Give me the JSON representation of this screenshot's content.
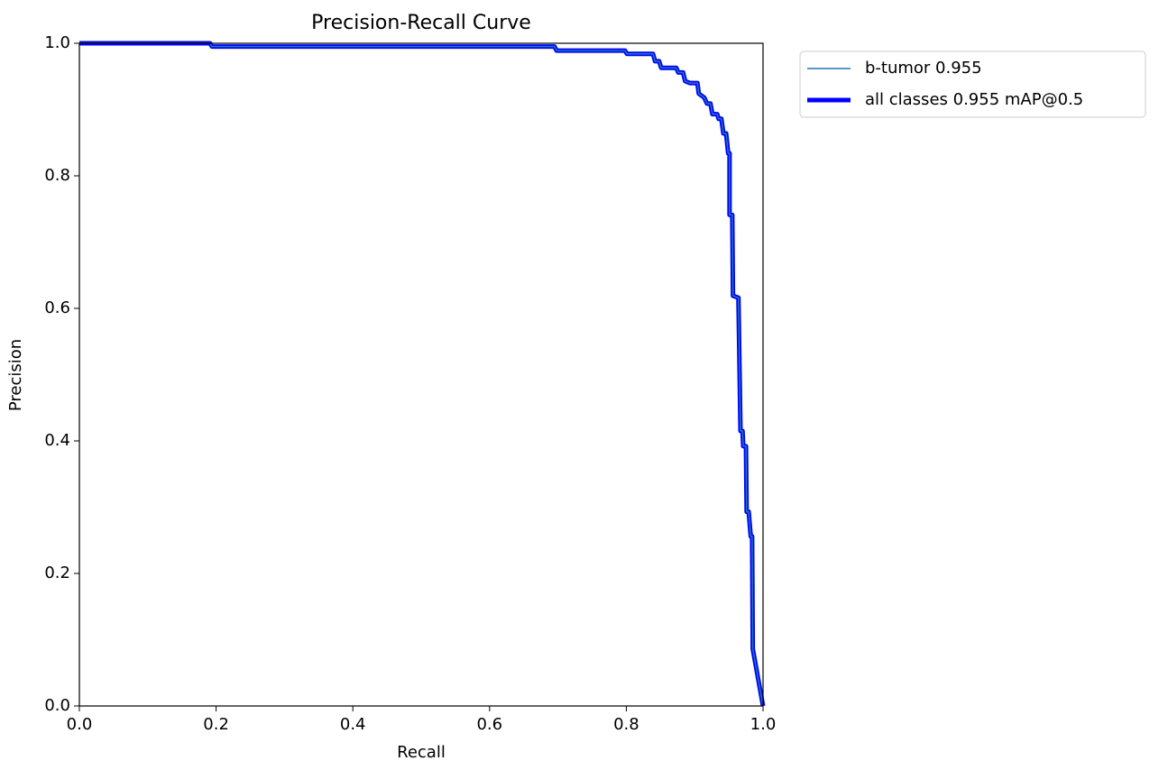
{
  "chart_data": {
    "type": "line",
    "title": "Precision-Recall Curve",
    "x_label": "Recall",
    "y_label": "Precision",
    "x": [
      0,
      0.191,
      0.194,
      0.695,
      0.698,
      0.798,
      0.801,
      0.839,
      0.842,
      0.848,
      0.851,
      0.873,
      0.876,
      0.883,
      0.886,
      0.893,
      0.904,
      0.906,
      0.914,
      0.918,
      0.923,
      0.926,
      0.933,
      0.935,
      0.939,
      0.942,
      0.946,
      0.949,
      0.951,
      0.951,
      0.955,
      0.956,
      0.964,
      0.967,
      0.97,
      0.971,
      0.975,
      0.976,
      0.979,
      0.982,
      0.984,
      0.985,
      1.0
    ],
    "series": [
      {
        "name": "b-tumor 0.955",
        "color": "#1f77b4",
        "width": 1.5,
        "values": [
          1.0,
          1.0,
          0.995,
          0.995,
          0.989,
          0.989,
          0.984,
          0.984,
          0.973,
          0.973,
          0.963,
          0.963,
          0.956,
          0.956,
          0.943,
          0.94,
          0.94,
          0.924,
          0.918,
          0.909,
          0.909,
          0.893,
          0.893,
          0.886,
          0.886,
          0.864,
          0.864,
          0.834,
          0.834,
          0.741,
          0.741,
          0.619,
          0.616,
          0.415,
          0.415,
          0.392,
          0.392,
          0.293,
          0.293,
          0.256,
          0.256,
          0.086,
          0.0
        ]
      },
      {
        "name": "all classes 0.955 mAP@0.5",
        "color": "#0000ff",
        "width": 5,
        "values": [
          1.0,
          1.0,
          0.995,
          0.995,
          0.989,
          0.989,
          0.984,
          0.984,
          0.973,
          0.973,
          0.963,
          0.963,
          0.956,
          0.956,
          0.943,
          0.94,
          0.94,
          0.924,
          0.918,
          0.909,
          0.909,
          0.893,
          0.893,
          0.886,
          0.886,
          0.864,
          0.864,
          0.834,
          0.834,
          0.741,
          0.741,
          0.619,
          0.616,
          0.415,
          0.415,
          0.392,
          0.392,
          0.293,
          0.293,
          0.256,
          0.256,
          0.086,
          0.0
        ]
      }
    ],
    "xlim": [
      0,
      1
    ],
    "ylim": [
      0,
      1
    ],
    "xticks": [
      {
        "value": 0,
        "label": "0.0"
      },
      0.2,
      0.4,
      0.6,
      0.8,
      {
        "value": 1,
        "label": "1.0"
      }
    ],
    "yticks": [
      {
        "value": 0,
        "label": "0.0"
      },
      0.2,
      0.4,
      0.6,
      0.8,
      {
        "value": 1,
        "label": "1.0"
      }
    ],
    "legend": "outside upper right"
  }
}
